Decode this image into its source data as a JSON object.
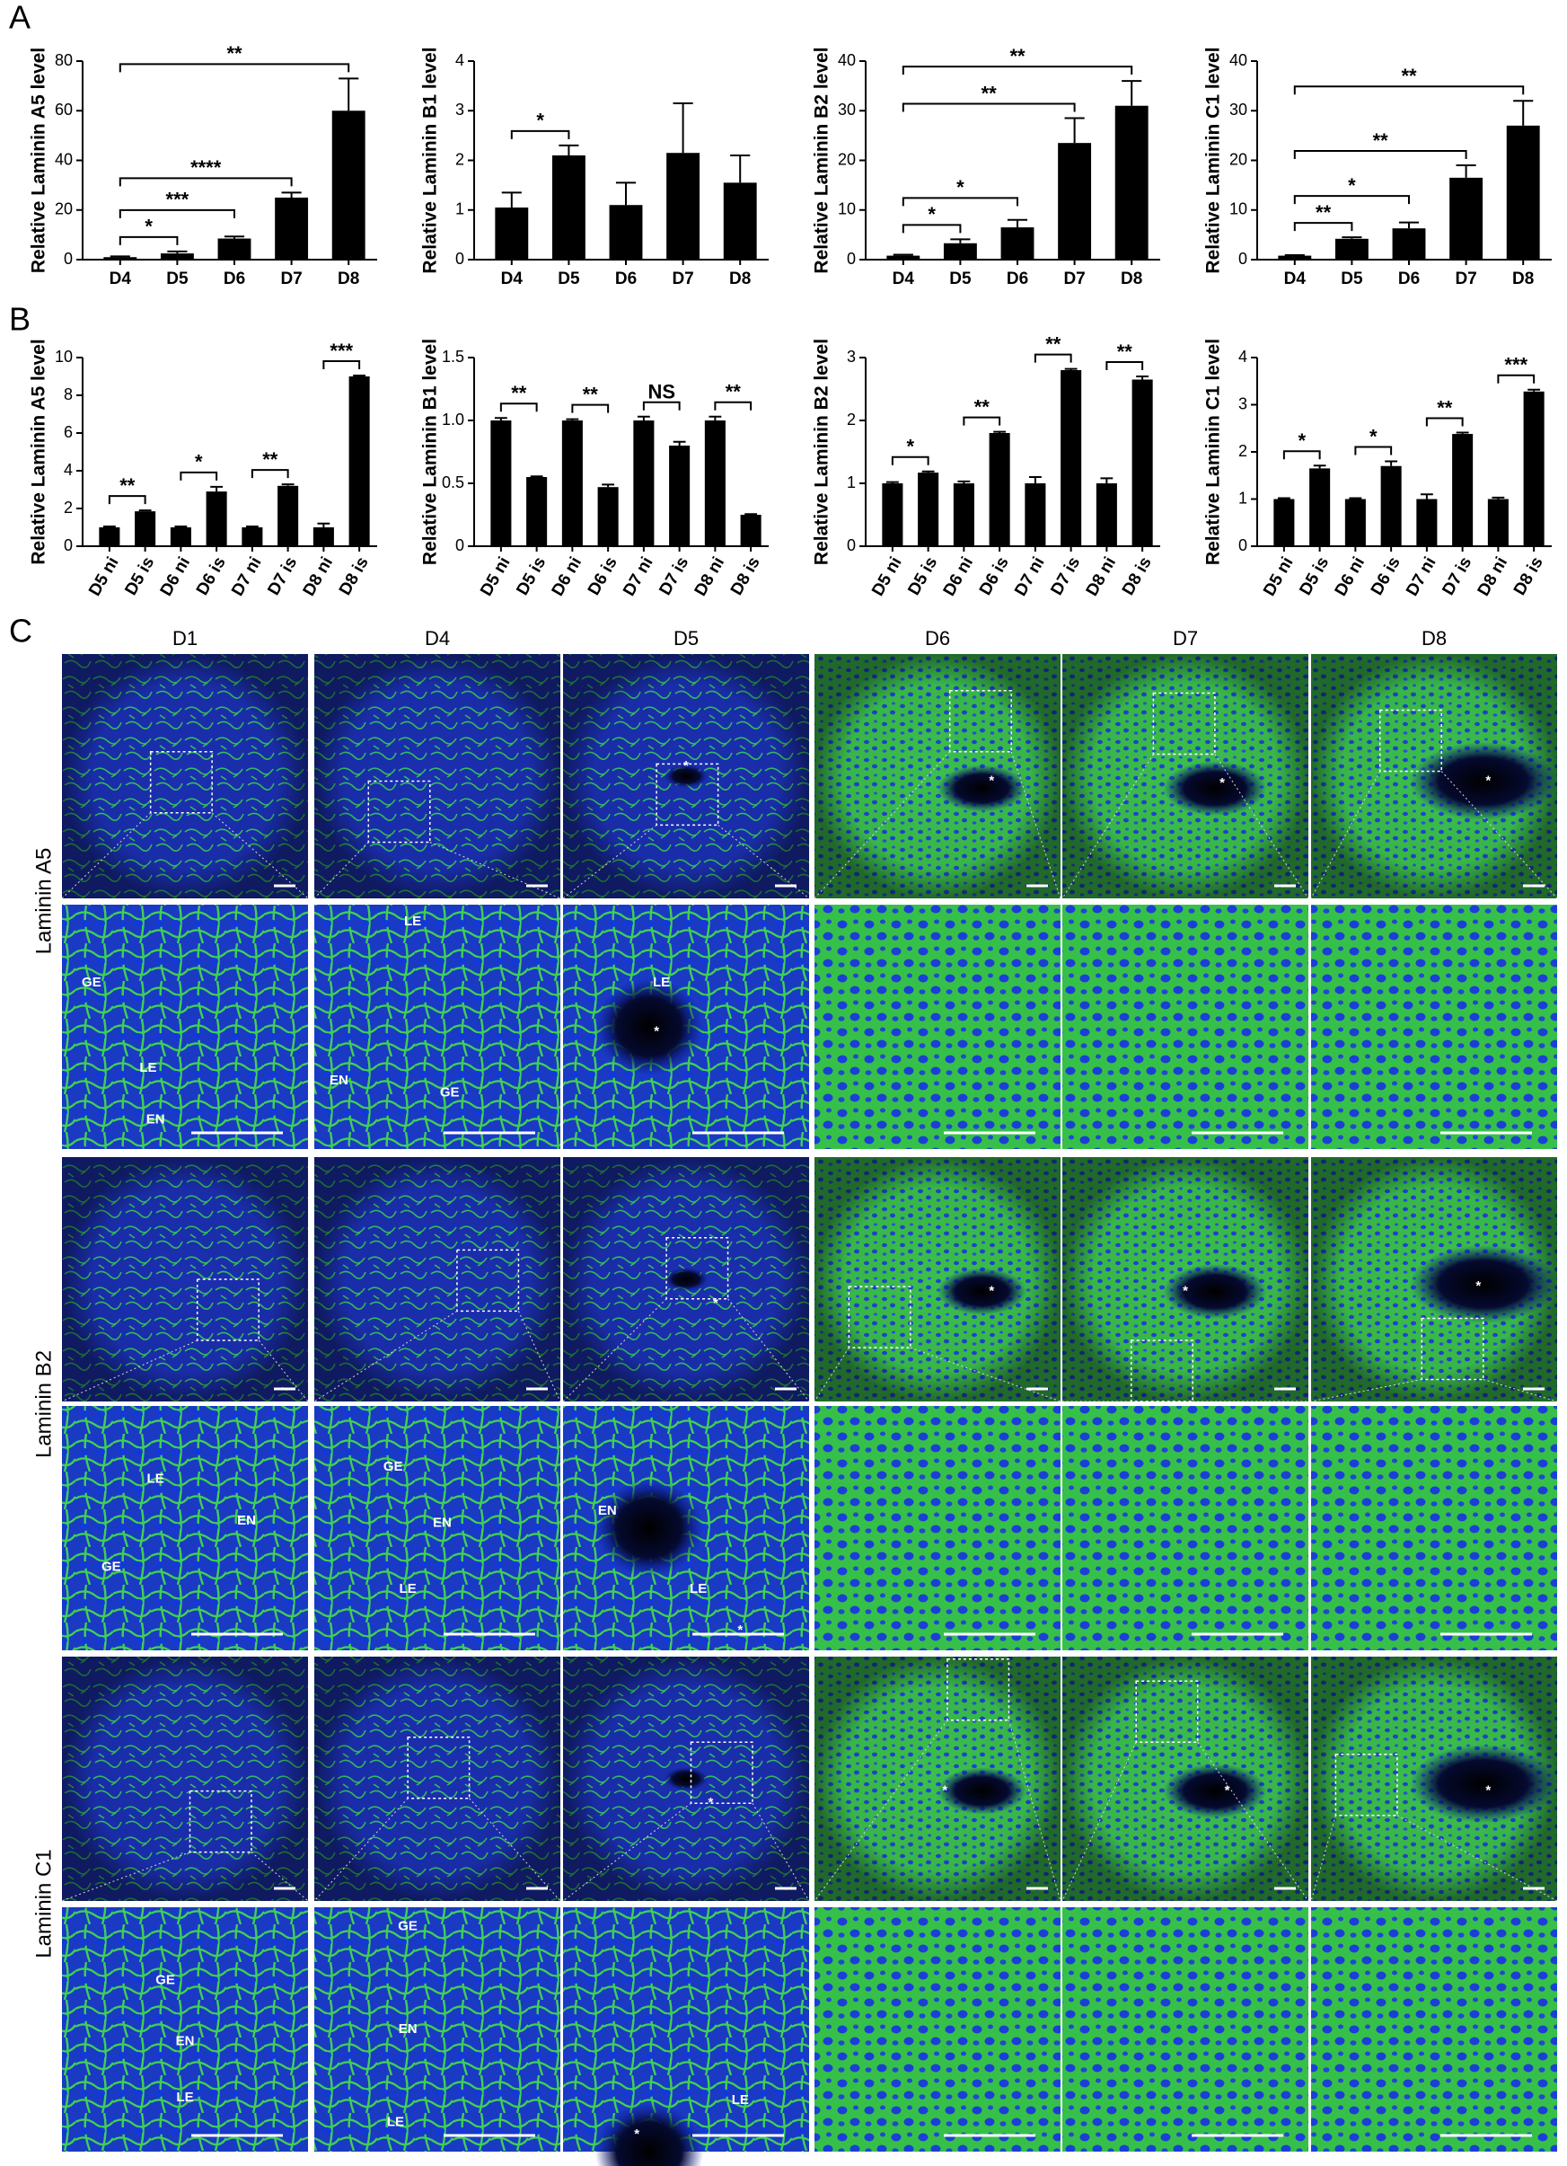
{
  "chart_data": [
    {
      "type": "bar",
      "y_label": "Relative Laminin A5 level",
      "categories": [
        "D4",
        "D5",
        "D6",
        "D7",
        "D8"
      ],
      "values": [
        1,
        2.5,
        8.5,
        25,
        60
      ],
      "errors": [
        0.3,
        0.8,
        0.8,
        2,
        13
      ],
      "color": "#000000",
      "ylim": [
        0,
        80
      ],
      "yticks": [
        0,
        20,
        40,
        60,
        80
      ],
      "significance": [
        {
          "from": "D4",
          "to": "D5",
          "label": "*"
        },
        {
          "from": "D4",
          "to": "D6",
          "label": "***"
        },
        {
          "from": "D4",
          "to": "D7",
          "label": "****"
        },
        {
          "from": "D4",
          "to": "D8",
          "label": "**"
        }
      ]
    },
    {
      "type": "bar",
      "y_label": "Relative Laminin B1 level",
      "categories": [
        "D4",
        "D5",
        "D6",
        "D7",
        "D8"
      ],
      "values": [
        1.05,
        2.1,
        1.1,
        2.15,
        1.55
      ],
      "errors": [
        0.3,
        0.2,
        0.45,
        1,
        0.55
      ],
      "color": "#000000",
      "ylim": [
        0,
        4
      ],
      "yticks": [
        0,
        1,
        2,
        3,
        4
      ],
      "significance": [
        {
          "from": "D4",
          "to": "D5",
          "label": "*"
        }
      ]
    },
    {
      "type": "bar",
      "y_label": "Relative Laminin B2 level",
      "categories": [
        "D4",
        "D5",
        "D6",
        "D7",
        "D8"
      ],
      "values": [
        0.8,
        3.3,
        6.5,
        23.5,
        31
      ],
      "errors": [
        0.2,
        0.8,
        1.5,
        5,
        5
      ],
      "color": "#000000",
      "ylim": [
        0,
        40
      ],
      "yticks": [
        0,
        10,
        20,
        30,
        40
      ],
      "significance": [
        {
          "from": "D4",
          "to": "D5",
          "label": "*"
        },
        {
          "from": "D4",
          "to": "D6",
          "label": "*"
        },
        {
          "from": "D4",
          "to": "D7",
          "label": "**"
        },
        {
          "from": "D4",
          "to": "D8",
          "label": "**"
        }
      ]
    },
    {
      "type": "bar",
      "y_label": "Relative Laminin C1 level",
      "categories": [
        "D4",
        "D5",
        "D6",
        "D7",
        "D8"
      ],
      "values": [
        0.8,
        4.2,
        6.3,
        16.5,
        27
      ],
      "errors": [
        0.1,
        0.3,
        1.2,
        2.5,
        5
      ],
      "color": "#000000",
      "ylim": [
        0,
        40
      ],
      "yticks": [
        0,
        10,
        20,
        30,
        40
      ],
      "significance": [
        {
          "from": "D4",
          "to": "D5",
          "label": "**"
        },
        {
          "from": "D4",
          "to": "D6",
          "label": "*"
        },
        {
          "from": "D4",
          "to": "D7",
          "label": "**"
        },
        {
          "from": "D4",
          "to": "D8",
          "label": "**"
        }
      ]
    },
    {
      "type": "bar",
      "y_label": "Relative Laminin A5 level",
      "categories": [
        "D5 ni",
        "D5 is",
        "D6 ni",
        "D6 is",
        "D7 ni",
        "D7 is",
        "D8 ni",
        "D8 is"
      ],
      "values": [
        1,
        1.85,
        1,
        2.9,
        1,
        3.2,
        1,
        9
      ],
      "errors": [
        0.05,
        0.05,
        0.05,
        0.25,
        0.05,
        0.08,
        0.2,
        0.05
      ],
      "color": "#000000",
      "ylim": [
        0,
        10
      ],
      "yticks": [
        0,
        2,
        4,
        6,
        8,
        10
      ],
      "significance": [
        {
          "from": "D5 ni",
          "to": "D5 is",
          "label": "**"
        },
        {
          "from": "D6 ni",
          "to": "D6 is",
          "label": "*"
        },
        {
          "from": "D7 ni",
          "to": "D7 is",
          "label": "**"
        },
        {
          "from": "D8 ni",
          "to": "D8 is",
          "label": "***"
        }
      ]
    },
    {
      "type": "bar",
      "y_label": "Relative Laminin B1 level",
      "categories": [
        "D5 ni",
        "D5 is",
        "D6 ni",
        "D6 is",
        "D7 ni",
        "D7 is",
        "D8 ni",
        "D8 is"
      ],
      "values": [
        1,
        0.55,
        1,
        0.47,
        1,
        0.8,
        1,
        0.25
      ],
      "errors": [
        0.02,
        0.005,
        0.01,
        0.02,
        0.03,
        0.03,
        0.03,
        0.005
      ],
      "color": "#000000",
      "ylim": [
        0,
        1.5
      ],
      "yticks": [
        0,
        0.5,
        {
          "value": 1,
          "label": "1.0"
        },
        1.5
      ],
      "significance": [
        {
          "from": "D5 ni",
          "to": "D5 is",
          "label": "**"
        },
        {
          "from": "D6 ni",
          "to": "D6 is",
          "label": "**"
        },
        {
          "from": "D7 ni",
          "to": "D7 is",
          "label": "NS"
        },
        {
          "from": "D8 ni",
          "to": "D8 is",
          "label": "**"
        }
      ]
    },
    {
      "type": "bar",
      "y_label": "Relative Laminin B2 level",
      "categories": [
        "D5 ni",
        "D5 is",
        "D6 ni",
        "D6 is",
        "D7 ni",
        "D7 is",
        "D8 ni",
        "D8 is"
      ],
      "values": [
        1,
        1.17,
        1,
        1.8,
        1,
        2.8,
        1,
        2.65
      ],
      "errors": [
        0.02,
        0.02,
        0.03,
        0.02,
        0.1,
        0.02,
        0.08,
        0.05
      ],
      "color": "#000000",
      "ylim": [
        0,
        3
      ],
      "yticks": [
        0,
        1,
        2,
        3
      ],
      "significance": [
        {
          "from": "D5 ni",
          "to": "D5 is",
          "label": "*"
        },
        {
          "from": "D6 ni",
          "to": "D6 is",
          "label": "**"
        },
        {
          "from": "D7 ni",
          "to": "D7 is",
          "label": "**"
        },
        {
          "from": "D8 ni",
          "to": "D8 is",
          "label": "**"
        }
      ]
    },
    {
      "type": "bar",
      "y_label": "Relative Laminin C1 level",
      "categories": [
        "D5 ni",
        "D5 is",
        "D6 ni",
        "D6 is",
        "D7 ni",
        "D7 is",
        "D8 ni",
        "D8 is"
      ],
      "values": [
        1,
        1.65,
        1,
        1.7,
        1,
        2.38,
        1,
        3.28
      ],
      "errors": [
        0.02,
        0.06,
        0.02,
        0.1,
        0.1,
        0.03,
        0.03,
        0.04
      ],
      "color": "#000000",
      "ylim": [
        0,
        4
      ],
      "yticks": [
        0,
        1,
        2,
        3,
        4
      ],
      "significance": [
        {
          "from": "D5 ni",
          "to": "D5 is",
          "label": "*"
        },
        {
          "from": "D6 ni",
          "to": "D6 is",
          "label": "*"
        },
        {
          "from": "D7 ni",
          "to": "D7 is",
          "label": "**"
        },
        {
          "from": "D8 ni",
          "to": "D8 is",
          "label": "***"
        }
      ]
    }
  ],
  "panel_labels": [
    "A",
    "B",
    "C"
  ],
  "microscopy": {
    "columns": [
      "D1",
      "D4",
      "D5",
      "D6",
      "D7",
      "D8"
    ],
    "rows": [
      "Laminin A5",
      "Laminin B2",
      "Laminin C1"
    ],
    "tile_labels": [
      [
        [],
        [],
        [
          "*"
        ],
        [
          "*"
        ],
        [
          "*"
        ],
        [
          "*"
        ]
      ],
      [
        [
          "GE",
          "LE",
          "EN"
        ],
        [
          "LE",
          "EN",
          "GE"
        ],
        [
          "LE",
          "*"
        ],
        [],
        [],
        []
      ],
      [
        [],
        [],
        [
          "*"
        ],
        [
          "*"
        ],
        [
          "*"
        ],
        [
          "*"
        ]
      ],
      [
        [
          "LE",
          "GE",
          "EN"
        ],
        [
          "GE",
          "EN",
          "LE"
        ],
        [
          "EN",
          "LE",
          "*"
        ],
        [],
        [],
        []
      ],
      [
        [],
        [],
        [
          "*"
        ],
        [
          "*"
        ],
        [
          "*"
        ],
        [
          "*"
        ]
      ],
      [
        [
          "GE",
          "EN",
          "LE"
        ],
        [
          "GE",
          "EN",
          "LE"
        ],
        [
          "LE",
          "*"
        ],
        [],
        [],
        []
      ]
    ]
  }
}
